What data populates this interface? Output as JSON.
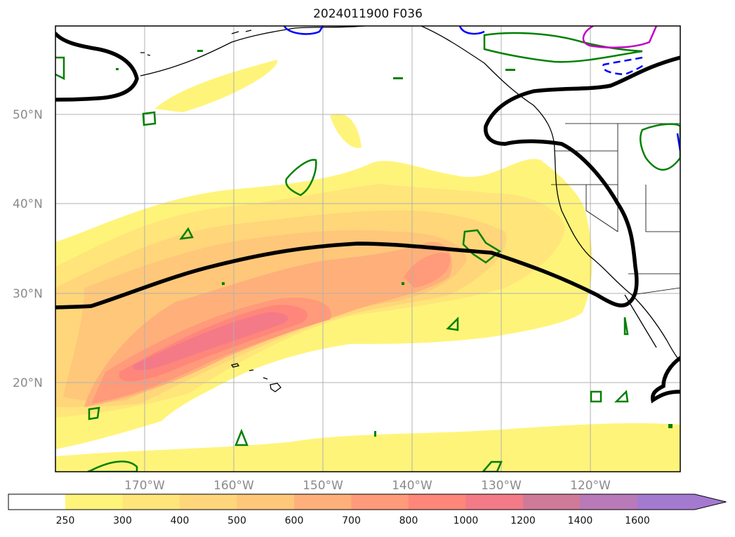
{
  "title": "2024011900 F036",
  "map": {
    "lat_labels": [
      "50°N",
      "40°N",
      "30°N",
      "20°N"
    ],
    "lon_labels": [
      "170°W",
      "160°W",
      "150°W",
      "140°W",
      "130°W",
      "120°W"
    ]
  },
  "colorbar": {
    "levels": [
      "250",
      "300",
      "400",
      "500",
      "600",
      "700",
      "800",
      "1000",
      "1200",
      "1400",
      "1600"
    ],
    "colors": [
      "#ffffff",
      "#fff47a",
      "#ffe57a",
      "#ffd67a",
      "#ffc77a",
      "#ffb07a",
      "#ff9a7a",
      "#ff867a",
      "#f47a88",
      "#d07a9a",
      "#b87ab8",
      "#a47ad0"
    ],
    "extend": "max"
  },
  "colors": {
    "ivt_line": "#000000",
    "green_contour": "#008000",
    "blue_contour": "#0000ff",
    "magenta_contour": "#c000c0"
  }
}
